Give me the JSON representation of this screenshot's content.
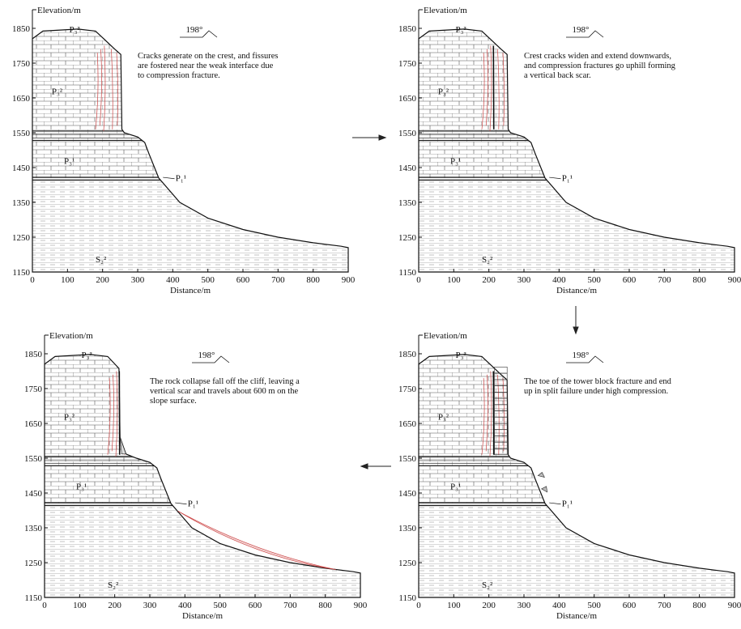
{
  "panels": [
    {
      "caption": [
        "Cracks generate on the crest, and fissures",
        "are fostered near the weak interface due",
        "to compression fracture."
      ],
      "azimuth": "198°",
      "x_label": "Distance/m",
      "y_label": "Elevation/m",
      "xticks": [
        0,
        100,
        200,
        300,
        400,
        500,
        600,
        700,
        800,
        900
      ],
      "yticks": [
        1150,
        1250,
        1350,
        1450,
        1550,
        1650,
        1750,
        1850
      ],
      "strata": {
        "top": "P₃³",
        "middle": "P₃²",
        "lower": "P₃¹",
        "contact": "P₁¹",
        "base": "S₂²"
      }
    },
    {
      "caption": [
        "Crest cracks widen and extend downwards,",
        "and compression fractures go uphill forming",
        "a vertical back scar."
      ],
      "azimuth": "198°",
      "x_label": "Distance/m",
      "y_label": "Elevation/m",
      "xticks": [
        0,
        100,
        200,
        300,
        400,
        500,
        600,
        700,
        800,
        900
      ],
      "yticks": [
        1150,
        1250,
        1350,
        1450,
        1550,
        1650,
        1750,
        1850
      ],
      "strata": {
        "top": "P₃³",
        "middle": "P₃²",
        "lower": "P₃¹",
        "contact": "P₁¹",
        "base": "S₂²"
      }
    },
    {
      "caption": [
        "The toe of the tower block fracture and end",
        "up in split failure under high compression."
      ],
      "azimuth": "198°",
      "x_label": "Distance/m",
      "y_label": "Elevation/m",
      "xticks": [
        0,
        100,
        200,
        300,
        400,
        500,
        600,
        700,
        800,
        900
      ],
      "yticks": [
        1150,
        1250,
        1350,
        1450,
        1550,
        1650,
        1750,
        1850
      ],
      "strata": {
        "top": "P₃³",
        "middle": "P₃²",
        "lower": "P₃¹",
        "contact": "P₁¹",
        "base": "S₂²"
      }
    },
    {
      "caption": [
        "The rock collapse fall off the cliff, leaving a",
        "vertical scar and travels about 600 m on the",
        "slope surface."
      ],
      "azimuth": "198°",
      "x_label": "Distance/m",
      "y_label": "Elevation/m",
      "xticks": [
        0,
        100,
        200,
        300,
        400,
        500,
        600,
        700,
        800,
        900
      ],
      "yticks": [
        1150,
        1250,
        1350,
        1450,
        1550,
        1650,
        1750,
        1850
      ],
      "strata": {
        "top": "P₃³",
        "middle": "P₃²",
        "lower": "P₃¹",
        "contact": "P₁¹",
        "base": "S₂²"
      }
    }
  ]
}
